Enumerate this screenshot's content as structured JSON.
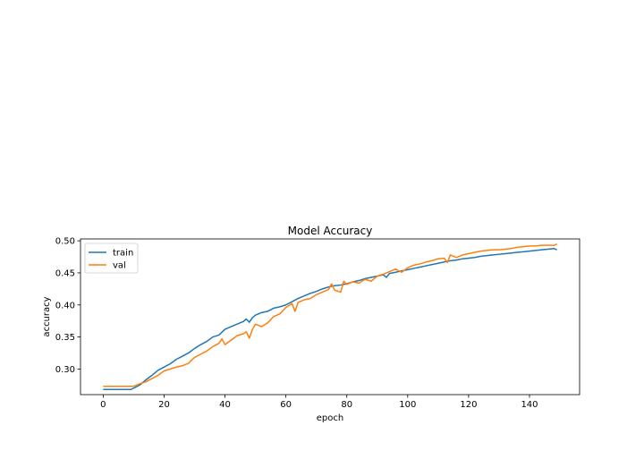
{
  "chart_data": {
    "type": "line",
    "title": "Model Accuracy",
    "xlabel": "epoch",
    "ylabel": "accuracy",
    "xlim": [
      -7.45,
      156.45
    ],
    "ylim": [
      0.26,
      0.503
    ],
    "xticks": [
      0,
      20,
      40,
      60,
      80,
      100,
      120,
      140
    ],
    "yticks": [
      0.3,
      0.35,
      0.4,
      0.45,
      0.5
    ],
    "xtick_labels": [
      "0",
      "20",
      "40",
      "60",
      "80",
      "100",
      "120",
      "140"
    ],
    "ytick_labels": [
      "0.30",
      "0.35",
      "0.40",
      "0.45",
      "0.50"
    ],
    "legend_position": "upper-left",
    "grid": false,
    "series": [
      {
        "name": "train",
        "color": "#1f77b4",
        "x": [
          0,
          5,
          9,
          10,
          12,
          14,
          16,
          18,
          20,
          22,
          24,
          26,
          28,
          30,
          32,
          34,
          36,
          38,
          40,
          42,
          44,
          46,
          47,
          48,
          49,
          50,
          52,
          54,
          56,
          58,
          60,
          62,
          64,
          66,
          68,
          70,
          72,
          74,
          76,
          78,
          80,
          82,
          84,
          86,
          88,
          90,
          92,
          93,
          94,
          96,
          98,
          100,
          102,
          104,
          106,
          108,
          110,
          112,
          114,
          116,
          118,
          120,
          122,
          124,
          126,
          128,
          130,
          132,
          134,
          136,
          138,
          140,
          142,
          144,
          146,
          148,
          149
        ],
        "y": [
          0.268,
          0.268,
          0.268,
          0.27,
          0.275,
          0.283,
          0.29,
          0.298,
          0.303,
          0.308,
          0.315,
          0.32,
          0.325,
          0.332,
          0.338,
          0.343,
          0.35,
          0.353,
          0.362,
          0.366,
          0.37,
          0.374,
          0.378,
          0.373,
          0.38,
          0.384,
          0.388,
          0.39,
          0.395,
          0.397,
          0.4,
          0.405,
          0.41,
          0.414,
          0.418,
          0.421,
          0.425,
          0.428,
          0.43,
          0.431,
          0.433,
          0.436,
          0.438,
          0.441,
          0.443,
          0.445,
          0.447,
          0.443,
          0.449,
          0.451,
          0.453,
          0.455,
          0.457,
          0.459,
          0.461,
          0.463,
          0.465,
          0.467,
          0.469,
          0.47,
          0.472,
          0.473,
          0.474,
          0.476,
          0.477,
          0.478,
          0.479,
          0.48,
          0.481,
          0.482,
          0.483,
          0.484,
          0.485,
          0.486,
          0.487,
          0.488,
          0.486
        ]
      },
      {
        "name": "val",
        "color": "#ff7f0e",
        "x": [
          0,
          5,
          10,
          12,
          14,
          16,
          18,
          20,
          22,
          24,
          26,
          28,
          30,
          32,
          34,
          36,
          38,
          39,
          40,
          42,
          44,
          46,
          47,
          48,
          49,
          50,
          52,
          54,
          56,
          58,
          60,
          62,
          63,
          64,
          66,
          68,
          70,
          72,
          74,
          75,
          76,
          78,
          79,
          80,
          82,
          84,
          86,
          88,
          90,
          92,
          94,
          96,
          98,
          100,
          102,
          104,
          106,
          108,
          110,
          112,
          113,
          114,
          116,
          118,
          120,
          122,
          124,
          126,
          128,
          130,
          132,
          134,
          136,
          138,
          140,
          142,
          144,
          146,
          148,
          149
        ],
        "y": [
          0.273,
          0.273,
          0.273,
          0.277,
          0.28,
          0.285,
          0.29,
          0.297,
          0.3,
          0.303,
          0.305,
          0.309,
          0.318,
          0.323,
          0.328,
          0.335,
          0.34,
          0.347,
          0.338,
          0.345,
          0.352,
          0.355,
          0.358,
          0.348,
          0.362,
          0.37,
          0.366,
          0.372,
          0.382,
          0.386,
          0.396,
          0.402,
          0.39,
          0.404,
          0.408,
          0.41,
          0.416,
          0.42,
          0.424,
          0.433,
          0.423,
          0.42,
          0.437,
          0.432,
          0.436,
          0.434,
          0.44,
          0.437,
          0.445,
          0.448,
          0.452,
          0.456,
          0.451,
          0.458,
          0.462,
          0.464,
          0.467,
          0.469,
          0.472,
          0.473,
          0.466,
          0.478,
          0.474,
          0.478,
          0.48,
          0.482,
          0.484,
          0.485,
          0.486,
          0.486,
          0.487,
          0.488,
          0.49,
          0.491,
          0.492,
          0.492,
          0.493,
          0.493,
          0.493,
          0.495
        ]
      }
    ]
  }
}
